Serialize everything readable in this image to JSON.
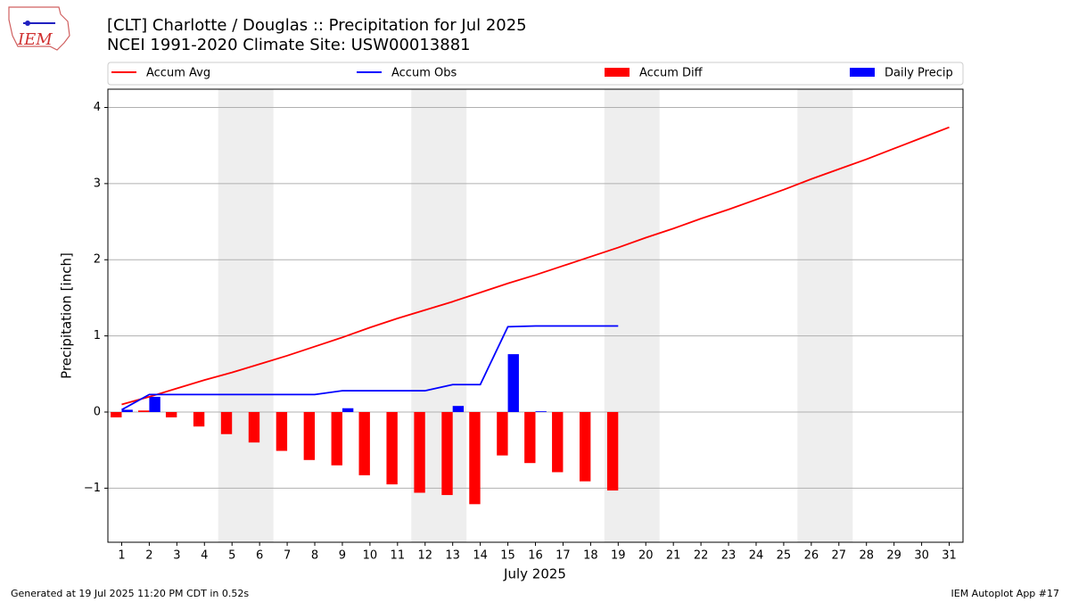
{
  "chart_data": {
    "type": "combo",
    "logo_text": "IEM",
    "title": "[CLT] Charlotte / Douglas :: Precipitation for Jul 2025",
    "subtitle": "NCEI 1991-2020 Climate Site: USW00013881",
    "xlabel": "July 2025",
    "ylabel": "Precipitation [inch]",
    "footer_left": "Generated at 19 Jul 2025 11:20 PM CDT in 0.52s",
    "footer_right": "IEM Autoplot App #17",
    "x": [
      1,
      2,
      3,
      4,
      5,
      6,
      7,
      8,
      9,
      10,
      11,
      12,
      13,
      14,
      15,
      16,
      17,
      18,
      19,
      20,
      21,
      22,
      23,
      24,
      25,
      26,
      27,
      28,
      29,
      30,
      31
    ],
    "xlim": [
      0.5,
      31.5
    ],
    "xticks": [
      1,
      2,
      3,
      4,
      5,
      6,
      7,
      8,
      9,
      10,
      11,
      12,
      13,
      14,
      15,
      16,
      17,
      18,
      19,
      20,
      21,
      22,
      23,
      24,
      25,
      26,
      27,
      28,
      29,
      30,
      31
    ],
    "ylim": [
      -1.71,
      4.24
    ],
    "yticks": [
      {
        "value": -1,
        "label": "−1"
      },
      0,
      1,
      2,
      3,
      4
    ],
    "grid": true,
    "legend": "top",
    "shaded_ranges": [
      [
        4.5,
        6.5
      ],
      [
        11.5,
        13.5
      ],
      [
        18.5,
        20.5
      ],
      [
        25.5,
        27.5
      ]
    ],
    "shade_color": "#eeeeee",
    "series": [
      {
        "name": "Accum Avg",
        "type": "line",
        "color": "#ff0000",
        "values": [
          0.1,
          0.2,
          0.31,
          0.42,
          0.52,
          0.63,
          0.74,
          0.86,
          0.98,
          1.11,
          1.23,
          1.34,
          1.45,
          1.57,
          1.69,
          1.8,
          1.92,
          2.04,
          2.16,
          2.29,
          2.41,
          2.54,
          2.66,
          2.79,
          2.92,
          3.06,
          3.19,
          3.32,
          3.46,
          3.6,
          3.74
        ]
      },
      {
        "name": "Accum Obs",
        "type": "line",
        "color": "#0000ff",
        "values": [
          0.03,
          0.23,
          0.23,
          0.23,
          0.23,
          0.23,
          0.23,
          0.23,
          0.28,
          0.28,
          0.28,
          0.28,
          0.36,
          0.36,
          1.12,
          1.13,
          1.13,
          1.13,
          1.13,
          null,
          null,
          null,
          null,
          null,
          null,
          null,
          null,
          null,
          null,
          null,
          null
        ]
      },
      {
        "name": "Accum Diff",
        "type": "bar",
        "color": "#ff0000",
        "values": [
          -0.07,
          0.02,
          -0.07,
          -0.19,
          -0.29,
          -0.4,
          -0.51,
          -0.63,
          -0.7,
          -0.83,
          -0.95,
          -1.06,
          -1.09,
          -1.21,
          -0.57,
          -0.67,
          -0.79,
          -0.91,
          -1.03,
          null,
          null,
          null,
          null,
          null,
          null,
          null,
          null,
          null,
          null,
          null,
          null
        ]
      },
      {
        "name": "Daily Precip",
        "type": "bar",
        "color": "#0000ff",
        "values": [
          0.03,
          0.2,
          0,
          0,
          0,
          0,
          0,
          0,
          0.05,
          0,
          0,
          0,
          0.08,
          0,
          0.76,
          0.01,
          0,
          0,
          0,
          null,
          null,
          null,
          null,
          null,
          null,
          null,
          null,
          null,
          null,
          null,
          null
        ]
      }
    ]
  }
}
